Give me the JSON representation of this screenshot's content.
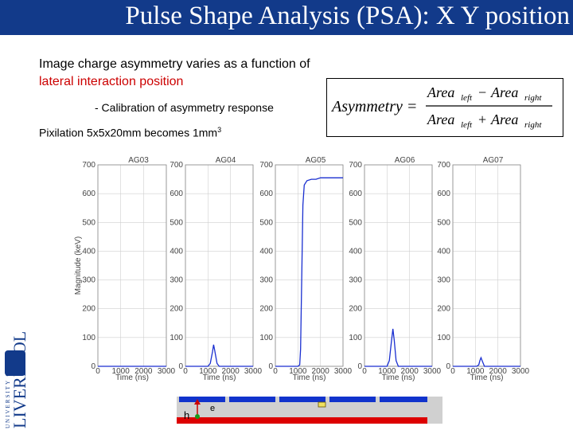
{
  "slide": {
    "title": "Pulse Shape Analysis (PSA): X Y position",
    "line1": "Image charge asymmetry varies as a function of",
    "line2": "lateral interaction position",
    "bullet": "- Calibration of asymmetry response",
    "pixel_text": "Pixilation 5x5x20mm becomes 1mm",
    "pixel_sup": "3"
  },
  "formula": {
    "lhs": "Asymmetry =",
    "num_a": "Area",
    "num_a_sub": "left",
    "minus": "−",
    "num_b": "Area",
    "num_b_sub": "right",
    "den_a": "Area",
    "den_a_sub": "left",
    "plus": "+",
    "den_b": "Area",
    "den_b_sub": "right"
  },
  "logo": {
    "top_text": "UNIVERSITY OF",
    "main_text": "LIVERPOOL"
  },
  "detector": {
    "label_h": "h",
    "label_e": "e"
  },
  "chart_data": [
    {
      "type": "line",
      "title": "AG03",
      "ylabel": "Magnitude (keV)",
      "xlabel": "Time (ns)",
      "xlim": [
        0,
        3000
      ],
      "ylim": [
        0,
        700
      ],
      "xticks": [
        "0",
        "1000",
        "2000",
        "3000"
      ],
      "yticks": [
        "0",
        "100",
        "200",
        "300",
        "400",
        "500",
        "600",
        "700"
      ],
      "series": [
        {
          "x": [
            0,
            900,
            1000,
            1100,
            1200,
            1300,
            1400,
            3000
          ],
          "values": [
            0,
            0,
            0,
            0,
            0,
            0,
            0,
            0
          ]
        }
      ]
    },
    {
      "type": "line",
      "title": "AG04",
      "xlabel": "Time (ns)",
      "xlim": [
        0,
        3000
      ],
      "ylim": [
        0,
        700
      ],
      "xticks": [
        "0",
        "1000",
        "2000",
        "3000"
      ],
      "yticks": [
        "0",
        "100",
        "200",
        "300",
        "400",
        "500",
        "600",
        "700"
      ],
      "series": [
        {
          "x": [
            0,
            1000,
            1100,
            1200,
            1250,
            1300,
            1400,
            1500,
            3000
          ],
          "values": [
            0,
            0,
            10,
            50,
            75,
            55,
            10,
            0,
            0
          ]
        }
      ]
    },
    {
      "type": "line",
      "title": "AG05",
      "xlabel": "Time (ns)",
      "xlim": [
        0,
        3000
      ],
      "ylim": [
        0,
        700
      ],
      "xticks": [
        "0",
        "1000",
        "2000",
        "3000"
      ],
      "yticks": [
        "0",
        "100",
        "200",
        "300",
        "400",
        "500",
        "600",
        "700"
      ],
      "series": [
        {
          "x": [
            0,
            1000,
            1080,
            1120,
            1170,
            1220,
            1280,
            1400,
            1600,
            1800,
            2000,
            2400,
            3000
          ],
          "values": [
            0,
            0,
            5,
            60,
            300,
            560,
            630,
            645,
            650,
            650,
            655,
            655,
            655
          ]
        }
      ]
    },
    {
      "type": "line",
      "title": "AG06",
      "xlabel": "Time (ns)",
      "xlim": [
        0,
        3000
      ],
      "ylim": [
        0,
        700
      ],
      "xticks": [
        "0",
        "1000",
        "2000",
        "3000"
      ],
      "yticks": [
        "0",
        "100",
        "200",
        "300",
        "400",
        "500",
        "600",
        "700"
      ],
      "series": [
        {
          "x": [
            0,
            1000,
            1100,
            1200,
            1260,
            1320,
            1400,
            1500,
            3000
          ],
          "values": [
            0,
            0,
            20,
            90,
            130,
            90,
            20,
            0,
            0
          ]
        }
      ]
    },
    {
      "type": "line",
      "title": "AG07",
      "xlabel": "Time (ns)",
      "xlim": [
        0,
        3000
      ],
      "ylim": [
        0,
        700
      ],
      "xticks": [
        "0",
        "1000",
        "2000",
        "3000"
      ],
      "yticks": [
        "0",
        "100",
        "200",
        "300",
        "400",
        "500",
        "600",
        "700"
      ],
      "series": [
        {
          "x": [
            0,
            1050,
            1150,
            1200,
            1250,
            1300,
            1400,
            3000
          ],
          "values": [
            0,
            0,
            5,
            20,
            30,
            20,
            0,
            0
          ]
        }
      ]
    }
  ]
}
